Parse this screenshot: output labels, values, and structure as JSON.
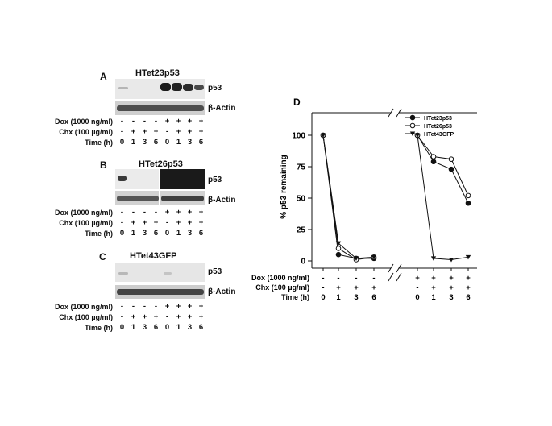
{
  "panels": [
    {
      "letter": "A",
      "title": "HTet23p53",
      "bands": [
        "p53",
        "β-Actin"
      ],
      "conditions": [
        {
          "label": "Dox (1000 ng/ml)",
          "values": [
            "-",
            "-",
            "-",
            "-",
            "+",
            "+",
            "+",
            "+"
          ]
        },
        {
          "label": "Chx (100 µg/ml)",
          "values": [
            "-",
            "+",
            "+",
            "+",
            "-",
            "+",
            "+",
            "+"
          ]
        },
        {
          "label": "Time (h)",
          "values": [
            "0",
            "1",
            "3",
            "6",
            "0",
            "1",
            "3",
            "6"
          ]
        }
      ]
    },
    {
      "letter": "B",
      "title": "HTet26p53",
      "bands": [
        "p53",
        "β-Actin"
      ],
      "conditions": [
        {
          "label": "Dox (1000 ng/ml)",
          "values": [
            "-",
            "-",
            "-",
            "-",
            "+",
            "+",
            "+",
            "+"
          ]
        },
        {
          "label": "Chx (100 µg/ml)",
          "values": [
            "-",
            "+",
            "+",
            "+",
            "-",
            "+",
            "+",
            "+"
          ]
        },
        {
          "label": "Time (h)",
          "values": [
            "0",
            "1",
            "3",
            "6",
            "0",
            "1",
            "3",
            "6"
          ]
        }
      ]
    },
    {
      "letter": "C",
      "title": "HTet43GFP",
      "bands": [
        "p53",
        "β-Actin"
      ],
      "conditions": [
        {
          "label": "Dox (1000 ng/ml)",
          "values": [
            "-",
            "-",
            "-",
            "-",
            "+",
            "+",
            "+",
            "+"
          ]
        },
        {
          "label": "Chx (100 µg/ml)",
          "values": [
            "-",
            "+",
            "+",
            "+",
            "-",
            "+",
            "+",
            "+"
          ]
        },
        {
          "label": "Time (h)",
          "values": [
            "0",
            "1",
            "3",
            "6",
            "0",
            "1",
            "3",
            "6"
          ]
        }
      ]
    }
  ],
  "chart_data": {
    "type": "line",
    "panel_letter": "D",
    "ylabel": "% p53 remaining",
    "yticks": [
      0,
      25,
      50,
      75,
      100
    ],
    "ylim": [
      0,
      110
    ],
    "x_groups": [
      {
        "dox": [
          "-",
          "-",
          "-",
          "-"
        ],
        "chx": [
          "-",
          "+",
          "+",
          "+"
        ],
        "time": [
          "0",
          "1",
          "3",
          "6"
        ]
      },
      {
        "dox": [
          "+",
          "+",
          "+",
          "+"
        ],
        "chx": [
          "-",
          "+",
          "+",
          "+"
        ],
        "time": [
          "0",
          "1",
          "3",
          "6"
        ]
      }
    ],
    "condition_labels": [
      "Dox (1000 ng/ml)",
      "Chx (100 µg/ml)",
      "Time (h)"
    ],
    "axis_break": true,
    "legend_position": "top-right",
    "series": [
      {
        "name": "HTet23p53",
        "marker": "filled-circle",
        "groups": [
          [
            100,
            5,
            2,
            2
          ],
          [
            100,
            79,
            73,
            46
          ]
        ]
      },
      {
        "name": "HTet26p53",
        "marker": "open-circle",
        "groups": [
          [
            100,
            10,
            1,
            3
          ],
          [
            100,
            83,
            81,
            52
          ]
        ]
      },
      {
        "name": "HTet43GFP",
        "marker": "filled-triangle-down",
        "groups": [
          [
            100,
            14,
            2,
            3
          ],
          [
            100,
            2,
            1,
            3
          ]
        ]
      }
    ]
  }
}
